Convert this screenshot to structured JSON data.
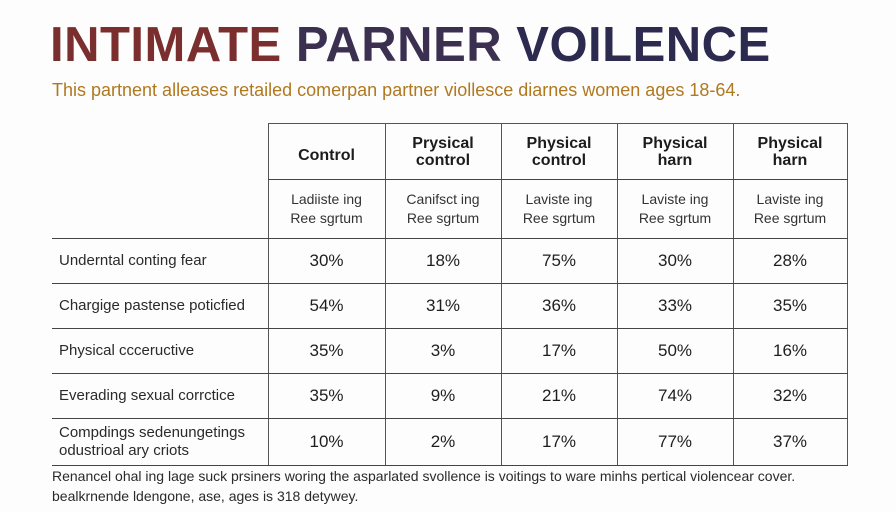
{
  "title": {
    "part1": "INTIMATE",
    "part2": "PARNER",
    "part3": "VOILENCE"
  },
  "subtitle": "This partnent alleases retailed comerpan partner viollesce diarnes women ages 18-64.",
  "chart_data": {
    "type": "table",
    "columns": [
      {
        "header": "Control",
        "sub_line1": "Ladiiste ing",
        "sub_line2": "Ree sgrtum"
      },
      {
        "header_line1": "Prysical",
        "header_line2": "control",
        "sub_line1": "Canifsct ing",
        "sub_line2": "Ree sgrtum"
      },
      {
        "header_line1": "Physical",
        "header_line2": "control",
        "sub_line1": "Laviste ing",
        "sub_line2": "Ree sgrtum"
      },
      {
        "header_line1": "Physical",
        "header_line2": "harn",
        "sub_line1": "Laviste ing",
        "sub_line2": "Ree sgrtum"
      },
      {
        "header_line1": "Physical",
        "header_line2": "harn",
        "sub_line1": "Laviste ing",
        "sub_line2": "Ree sgrtum"
      }
    ],
    "rows": [
      {
        "label_line1": "Underntal conting fear",
        "label_line2": "",
        "values": [
          "30%",
          "18%",
          "75%",
          "30%",
          "28%"
        ]
      },
      {
        "label_line1": "Chargige pastense poticfied",
        "label_line2": "",
        "values": [
          "54%",
          "31%",
          "36%",
          "33%",
          "35%"
        ]
      },
      {
        "label_line1": "Physical ccceructive",
        "label_line2": "",
        "values": [
          "35%",
          "3%",
          "17%",
          "50%",
          "16%"
        ]
      },
      {
        "label_line1": "Everading sexual corrctice",
        "label_line2": "",
        "values": [
          "35%",
          "9%",
          "21%",
          "74%",
          "32%"
        ]
      },
      {
        "label_line1": "Compdings sedenungetings",
        "label_line2": "odustrioal ary criots",
        "values": [
          "10%",
          "2%",
          "17%",
          "77%",
          "37%"
        ]
      }
    ]
  },
  "footnote": {
    "line1": "Renancel ohal ing lage suck prsiners woring the asparlated svollence is voitings to ware minhs pertical violencear cover.",
    "line2": "bealkrnende ldengone, ase, ages is 318 detywey."
  },
  "colors": {
    "title_1": "#7a2e2e",
    "title_2": "#3b3050",
    "title_3": "#2c2a4e",
    "subtitle": "#b0781f"
  }
}
